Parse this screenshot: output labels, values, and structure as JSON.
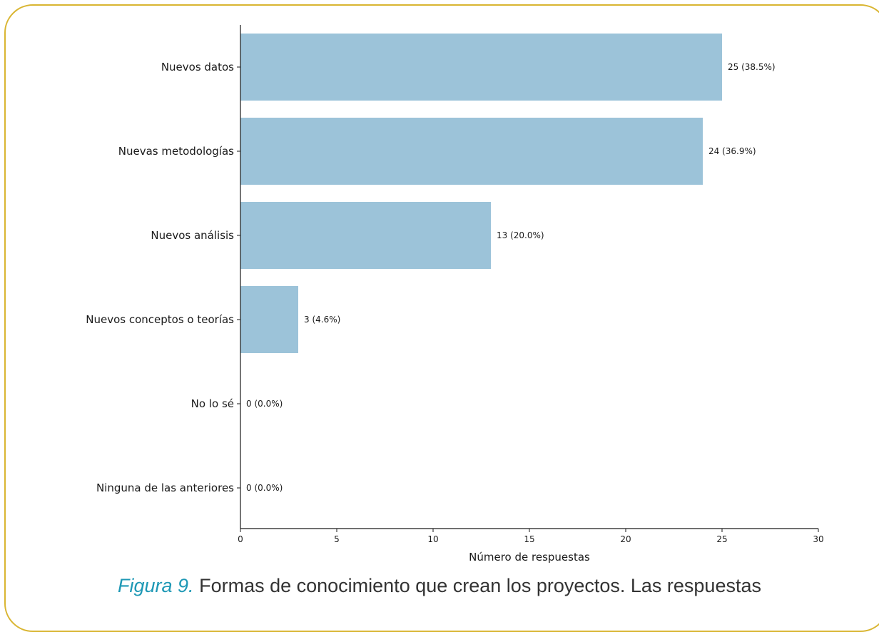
{
  "chart_data": {
    "type": "bar",
    "orientation": "horizontal",
    "categories": [
      "Nuevos datos",
      "Nuevas metodologías",
      "Nuevos análisis",
      "Nuevos conceptos o teorías",
      "No lo sé",
      "Ninguna de las anteriores"
    ],
    "values": [
      25,
      24,
      13,
      3,
      0,
      0
    ],
    "labels": [
      "25 (38.5%)",
      "24 (36.9%)",
      "13 (20.0%)",
      "3 (4.6%)",
      "0 (0.0%)",
      "0 (0.0%)"
    ],
    "xlabel": "Número de respuestas",
    "xlim": [
      0,
      30
    ],
    "xticks": [
      0,
      5,
      10,
      15,
      20,
      25,
      30
    ],
    "bar_color": "#9cc3d9",
    "grid": false
  },
  "caption": {
    "figure_label": "Figura 9.",
    "text": "Formas de conocimiento que crean los proyectos. Las respuestas"
  },
  "frame_color": "#d9b531",
  "caption_accent": "#1e98b5"
}
